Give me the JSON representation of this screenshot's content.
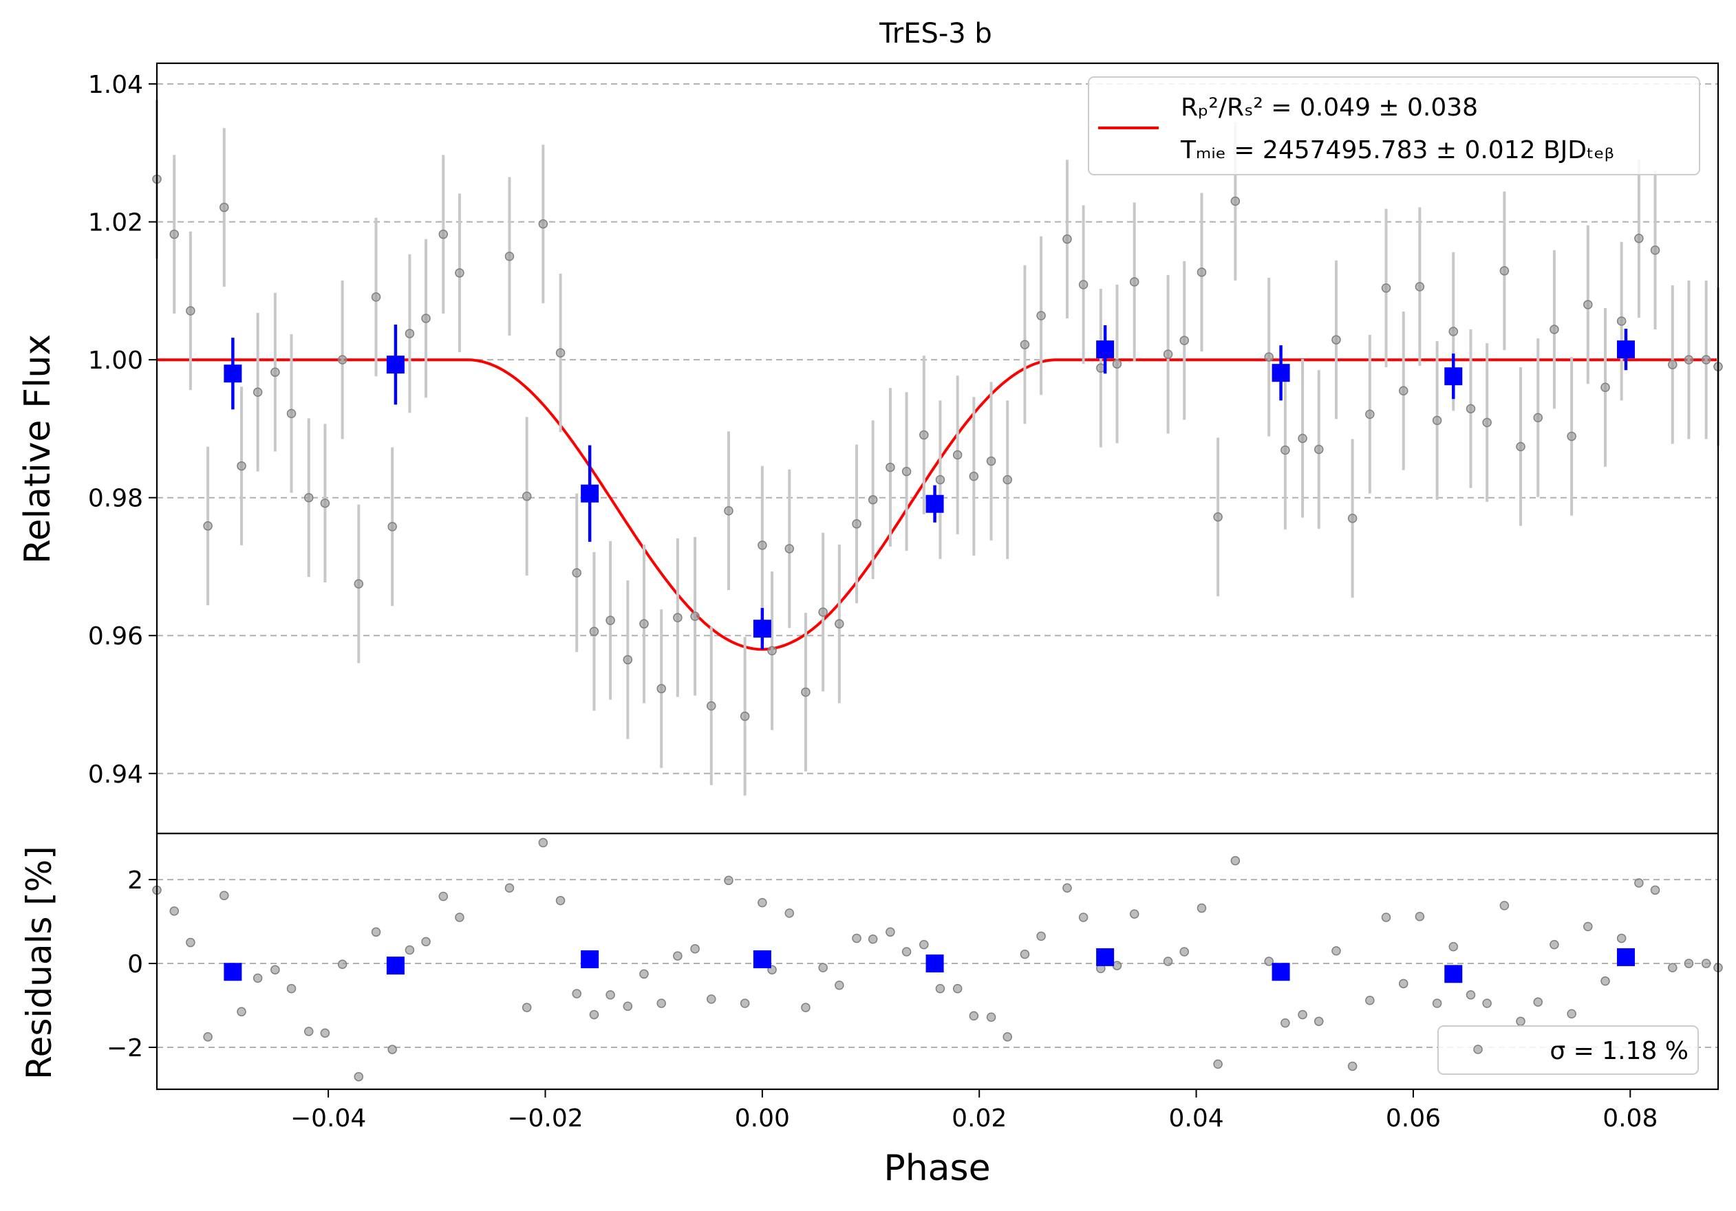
{
  "title": "TrES-3 b",
  "colors": {
    "model": "#ff0000",
    "binned": "#0000ff",
    "raw": "#999999",
    "raw_err": "#c8c8c8",
    "grid": "#b0b0b0"
  },
  "chart_data": [
    {
      "panel": "flux",
      "type": "scatter",
      "title": "TrES-3 b",
      "xlabel": "",
      "ylabel": "Relative Flux",
      "xlim": [
        -0.0558,
        0.0881
      ],
      "ylim": [
        0.9313,
        1.043
      ],
      "yticks": [
        0.94,
        0.96,
        0.98,
        1.0,
        1.02,
        1.04
      ],
      "ytick_labels": [
        "0.94",
        "0.96",
        "0.98",
        "1.00",
        "1.02",
        "1.04"
      ],
      "grid": "horizontal dashed",
      "legend_position": "upper right",
      "legend": {
        "model_label_line1": "Rₚ²/Rₛ² = 0.049 ± 0.038",
        "model_label_line2": "Tₘᵢₑ = 2457495.783 ± 0.012 BJDₜₑᵦ",
        "rp_rs": "0.049 ± 0.038",
        "tmid": "2457495.783 ± 0.012"
      },
      "model": {
        "name": "transit model",
        "ingress_start": -0.0272,
        "egress_end": 0.0272,
        "baseline": 1.0,
        "min_flux": 0.958
      },
      "raw": {
        "x": [
          -0.0558,
          -0.0542,
          -0.0527,
          -0.0511,
          -0.0496,
          -0.048,
          -0.0465,
          -0.0449,
          -0.0434,
          -0.0418,
          -0.0403,
          -0.0387,
          -0.0372,
          -0.0356,
          -0.0341,
          -0.0325,
          -0.031,
          -0.0294,
          -0.0279,
          -0.0233,
          -0.0217,
          -0.0202,
          -0.0186,
          -0.0171,
          -0.0155,
          -0.014,
          -0.0124,
          -0.0109,
          -0.0093,
          -0.0078,
          -0.0062,
          -0.0047,
          -0.0031,
          -0.0016,
          0.0,
          0.0009,
          0.0025,
          0.004,
          0.0056,
          0.0071,
          0.0087,
          0.0102,
          0.0118,
          0.0133,
          0.0149,
          0.0164,
          0.018,
          0.0195,
          0.0211,
          0.0226,
          0.0242,
          0.0257,
          0.0281,
          0.0296,
          0.0312,
          0.0327,
          0.0343,
          0.0374,
          0.0389,
          0.0405,
          0.042,
          0.0436,
          0.0467,
          0.0482,
          0.0498,
          0.0513,
          0.0529,
          0.0544,
          0.056,
          0.0575,
          0.0591,
          0.0606,
          0.0622,
          0.0637,
          0.0653,
          0.0668,
          0.0684,
          0.0699,
          0.0715,
          0.073,
          0.0746,
          0.0761,
          0.0777,
          0.0792,
          0.0808,
          0.0823,
          0.0839,
          0.0854,
          0.087,
          0.0881
        ],
        "y": [
          1.0262,
          1.0182,
          1.0071,
          0.9759,
          1.0221,
          0.9846,
          0.9953,
          0.9982,
          0.9922,
          0.98,
          0.9792,
          1.0,
          0.9675,
          1.0091,
          0.9758,
          1.0038,
          1.006,
          1.0182,
          1.0126,
          1.015,
          0.9802,
          1.0197,
          1.001,
          0.9691,
          0.9606,
          0.9622,
          0.9565,
          0.9617,
          0.9523,
          0.9626,
          0.9628,
          0.9498,
          0.9781,
          0.9483,
          0.9731,
          0.9578,
          0.9726,
          0.9518,
          0.9634,
          0.9617,
          0.9762,
          0.9797,
          0.9844,
          0.9838,
          0.9891,
          0.9826,
          0.9862,
          0.9831,
          0.9853,
          0.9826,
          1.0022,
          1.0064,
          1.0175,
          1.0109,
          0.9988,
          0.9994,
          1.0113,
          1.0008,
          1.0028,
          1.0127,
          0.9772,
          1.023,
          1.0004,
          0.9869,
          0.9886,
          0.987,
          1.0029,
          0.977,
          0.9921,
          1.0104,
          0.9955,
          1.0106,
          0.9912,
          1.0041,
          0.9929,
          0.9909,
          1.0129,
          0.9874,
          0.9916,
          1.0044,
          0.9889,
          1.008,
          0.996,
          1.0056,
          1.0176,
          1.0159,
          0.9993,
          1.0,
          1.0,
          0.999
        ],
        "err": 0.0115
      },
      "binned": {
        "x": [
          -0.0488,
          -0.0338,
          -0.0159,
          0.0,
          0.0159,
          0.0316,
          0.0478,
          0.0637,
          0.0796
        ],
        "y": [
          0.998,
          0.9993,
          0.9806,
          0.961,
          0.9791,
          1.0015,
          0.9981,
          0.9976,
          1.0015
        ],
        "err": [
          0.0052,
          0.0058,
          0.007,
          0.003,
          0.0027,
          0.0035,
          0.004,
          0.0033,
          0.003
        ]
      }
    },
    {
      "panel": "residuals",
      "type": "scatter",
      "xlabel": "Phase",
      "ylabel": "Residuals [%]",
      "xlim": [
        -0.0558,
        0.0881
      ],
      "ylim": [
        -3.0,
        3.1
      ],
      "yticks": [
        -2,
        0,
        2
      ],
      "ytick_labels": [
        "−2",
        "0",
        "2"
      ],
      "xticks": [
        -0.04,
        -0.02,
        0.0,
        0.02,
        0.04,
        0.06,
        0.08
      ],
      "xtick_labels": [
        "−0.04",
        "−0.02",
        "0.00",
        "0.02",
        "0.04",
        "0.06",
        "0.08"
      ],
      "grid": "horizontal dashed",
      "legend_position": "lower right",
      "legend": {
        "label": "σ = 1.18 %",
        "sigma": "1.18"
      },
      "raw": {
        "x": [
          -0.0558,
          -0.0542,
          -0.0527,
          -0.0511,
          -0.0496,
          -0.048,
          -0.0465,
          -0.0449,
          -0.0434,
          -0.0418,
          -0.0403,
          -0.0387,
          -0.0372,
          -0.0356,
          -0.0341,
          -0.0325,
          -0.031,
          -0.0294,
          -0.0279,
          -0.0233,
          -0.0217,
          -0.0202,
          -0.0186,
          -0.0171,
          -0.0155,
          -0.014,
          -0.0124,
          -0.0109,
          -0.0093,
          -0.0078,
          -0.0062,
          -0.0047,
          -0.0031,
          -0.0016,
          0.0,
          0.0009,
          0.0025,
          0.004,
          0.0056,
          0.0071,
          0.0087,
          0.0102,
          0.0118,
          0.0133,
          0.0149,
          0.0164,
          0.018,
          0.0195,
          0.0211,
          0.0226,
          0.0242,
          0.0257,
          0.0281,
          0.0296,
          0.0312,
          0.0327,
          0.0343,
          0.0374,
          0.0389,
          0.0405,
          0.042,
          0.0436,
          0.0467,
          0.0482,
          0.0498,
          0.0513,
          0.0529,
          0.0544,
          0.056,
          0.0575,
          0.0591,
          0.0606,
          0.0622,
          0.0637,
          0.0653,
          0.0668,
          0.0684,
          0.0699,
          0.0715,
          0.073,
          0.0746,
          0.0761,
          0.0777,
          0.0792,
          0.0808,
          0.0823,
          0.0839,
          0.0854,
          0.087,
          0.0881
        ],
        "y": [
          1.75,
          1.25,
          0.5,
          -1.75,
          1.62,
          -1.15,
          -0.35,
          -0.15,
          -0.6,
          -1.62,
          -1.66,
          -0.02,
          -2.7,
          0.75,
          -2.05,
          0.32,
          0.52,
          1.6,
          1.1,
          1.8,
          -1.05,
          2.88,
          1.5,
          -0.72,
          -1.22,
          -0.75,
          -1.02,
          -0.25,
          -0.95,
          0.18,
          0.35,
          -0.85,
          1.98,
          -0.95,
          1.45,
          -0.15,
          1.2,
          -1.05,
          -0.1,
          -0.52,
          0.6,
          0.58,
          0.75,
          0.28,
          0.45,
          -0.6,
          -0.6,
          -1.25,
          -1.28,
          -1.75,
          0.22,
          0.65,
          1.8,
          1.1,
          -0.12,
          -0.05,
          1.18,
          0.05,
          0.28,
          1.32,
          -2.4,
          2.45,
          0.05,
          -1.42,
          -1.22,
          -1.38,
          0.3,
          -2.45,
          -0.88,
          1.1,
          -0.48,
          1.12,
          -0.95,
          0.4,
          -0.75,
          -0.95,
          1.38,
          -1.38,
          -0.92,
          0.45,
          -1.2,
          0.88,
          -0.42,
          0.6,
          1.92,
          1.75,
          -0.1,
          0.0,
          0.0,
          -0.1
        ]
      },
      "binned": {
        "x": [
          -0.0488,
          -0.0338,
          -0.0159,
          0.0,
          0.0159,
          0.0316,
          0.0478,
          0.0637,
          0.0796
        ],
        "y": [
          -0.2,
          -0.05,
          0.1,
          0.1,
          0.0,
          0.15,
          -0.2,
          -0.25,
          0.15
        ]
      }
    }
  ]
}
